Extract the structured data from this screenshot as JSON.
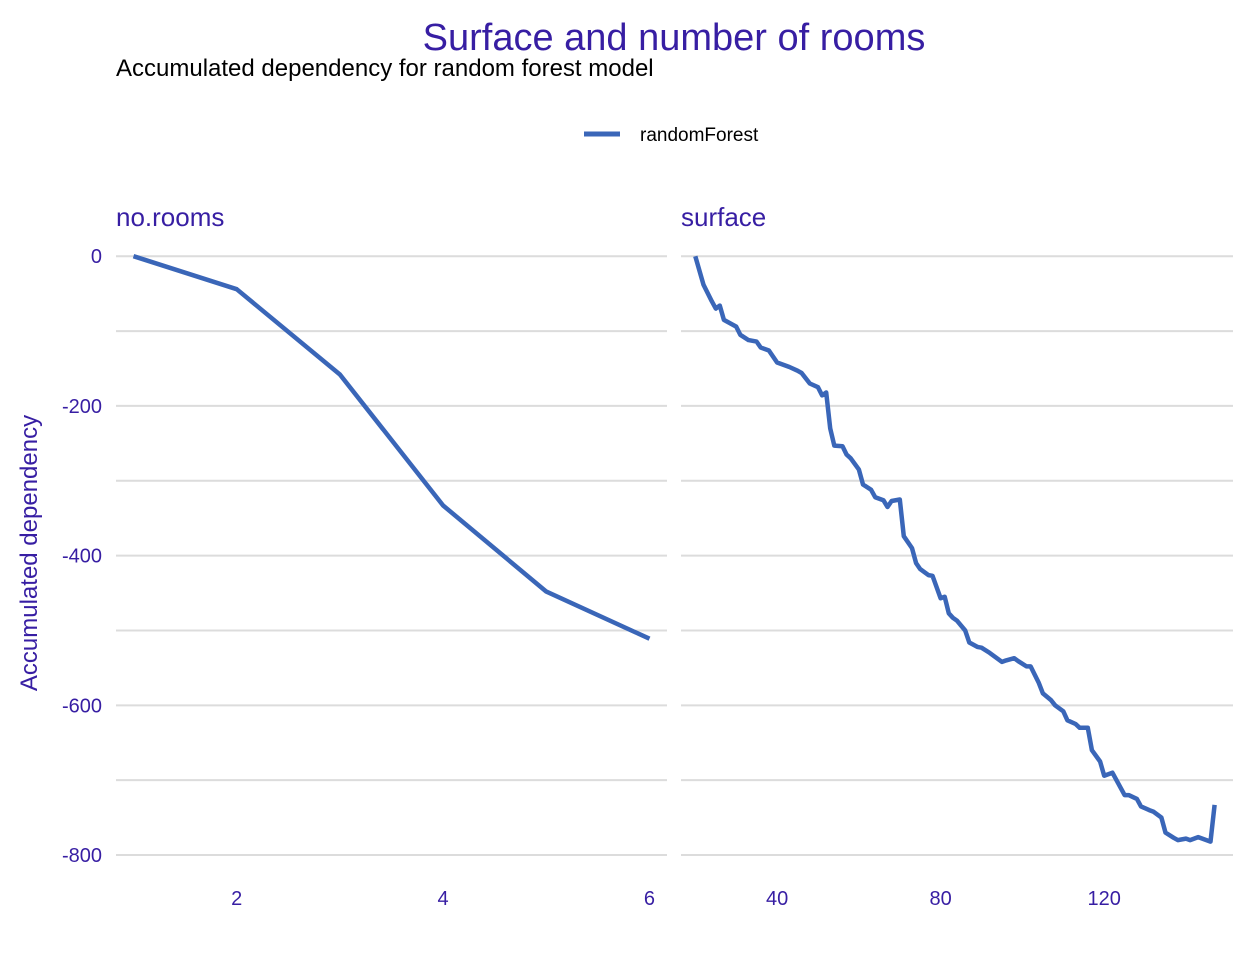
{
  "chart_data": {
    "type": "line",
    "title": "Surface and number of rooms",
    "subtitle": "Accumulated dependency for random forest model",
    "ylabel": "Accumulated dependency",
    "legend": {
      "position": "top",
      "entries": [
        {
          "name": "randomForest",
          "color": "#3a66b8"
        }
      ]
    },
    "colors": {
      "title": "#371ea3",
      "axis_text": "#371ea3",
      "subtitle": "#000000",
      "gridline": "#dcdcdc",
      "series": "#3a66b8"
    },
    "grid": true,
    "ylim": [
      -820,
      15
    ],
    "y_ticks": [
      0,
      -200,
      -400,
      -600,
      -800
    ],
    "y_tick_labels": [
      "0",
      "-200",
      "-400",
      "-600",
      "-800"
    ],
    "y_minor_ticks": [
      -100,
      -300,
      -500,
      -700
    ],
    "panels": [
      {
        "name": "no.rooms",
        "xlim": [
          0.83,
          6.17
        ],
        "x_ticks": [
          2,
          4,
          6
        ],
        "x_tick_labels": [
          "2",
          "4",
          "6"
        ],
        "series": [
          {
            "name": "randomForest",
            "x": [
              1,
              2,
              3,
              4,
              5,
              6
            ],
            "y": [
              0,
              -44,
              -158,
              -333,
              -448,
              -511
            ]
          }
        ]
      },
      {
        "name": "surface",
        "xlim": [
          16.5,
          151.5
        ],
        "x_ticks": [
          40,
          80,
          120
        ],
        "x_tick_labels": [
          "40",
          "80",
          "120"
        ],
        "series": [
          {
            "name": "randomForest",
            "x": [
              20,
              22,
              24,
              25,
              26,
              27,
              28,
              30,
              31,
              33,
              35,
              36,
              38,
              40,
              42,
              43,
              45,
              46,
              48,
              50,
              51,
              52,
              53,
              54,
              56,
              57,
              58,
              60,
              61,
              63,
              64,
              66,
              67,
              68,
              70,
              71,
              73,
              74,
              75,
              77,
              78,
              80,
              81,
              82,
              83,
              84,
              86,
              87,
              89,
              90,
              92,
              93,
              95,
              96,
              98,
              99,
              101,
              102,
              104,
              105,
              107,
              108,
              110,
              111,
              113,
              114,
              116,
              117,
              119,
              120,
              122,
              123,
              125,
              126,
              128,
              129,
              131,
              132,
              134,
              135,
              137,
              138,
              140,
              141,
              143,
              144,
              145,
              146,
              147
            ],
            "y": [
              0,
              -38,
              -60,
              -70,
              -66,
              -85,
              -88,
              -94,
              -105,
              -112,
              -114,
              -122,
              -126,
              -142,
              -146,
              -148,
              -153,
              -156,
              -170,
              -175,
              -186,
              -182,
              -230,
              -253,
              -254,
              -265,
              -270,
              -285,
              -305,
              -312,
              -322,
              -326,
              -335,
              -327,
              -325,
              -374,
              -390,
              -410,
              -418,
              -426,
              -427,
              -457,
              -455,
              -477,
              -483,
              -487,
              -500,
              -516,
              -522,
              -523,
              -530,
              -534,
              -542,
              -540,
              -537,
              -541,
              -548,
              -548,
              -570,
              -584,
              -593,
              -600,
              -608,
              -620,
              -625,
              -630,
              -630,
              -660,
              -675,
              -694,
              -690,
              -700,
              -720,
              -720,
              -725,
              -735,
              -740,
              -742,
              -750,
              -770,
              -777,
              -780,
              -778,
              -780,
              -776,
              -778,
              -780,
              -782,
              -733
            ]
          }
        ]
      }
    ]
  }
}
